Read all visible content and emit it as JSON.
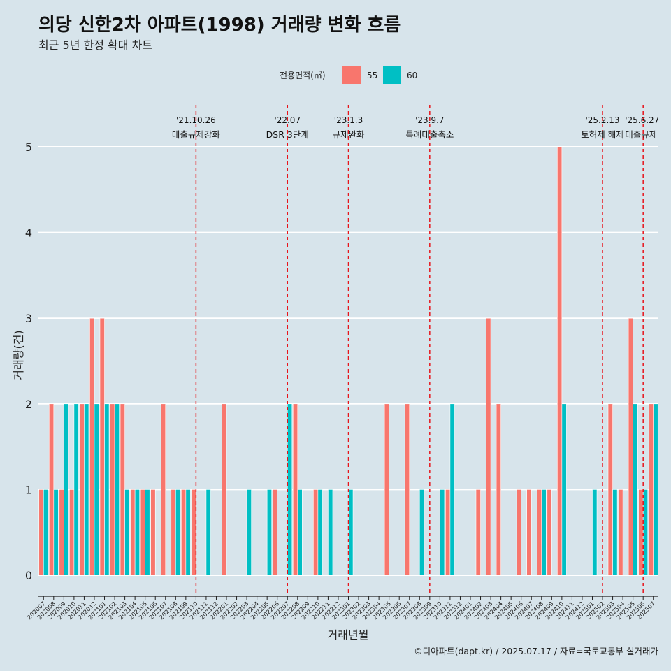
{
  "chart_data": {
    "type": "bar",
    "title": "의당 신한2차 아파트(1998) 거래량 변화 흐름",
    "subtitle": "최근 5년 한정 확대 차트",
    "xlabel": "거래년월",
    "ylabel": "거래량(건)",
    "ylim": [
      -0.25,
      5.5
    ],
    "yticks": [
      "0",
      "1",
      "2",
      "3",
      "4",
      "5"
    ],
    "grid": true,
    "legend": {
      "title": "전용면적(㎡)",
      "position": "top"
    },
    "colors": {
      "55": "#f8766d",
      "60": "#00bfc4",
      "event_line": "#e8141b",
      "background": "#d7e4eb",
      "grid": "#ffffff"
    },
    "categories": [
      "202007",
      "202008",
      "202009",
      "202010",
      "202011",
      "202012",
      "202101",
      "202102",
      "202103",
      "202104",
      "202105",
      "202106",
      "202107",
      "202108",
      "202109",
      "202110",
      "202111",
      "202112",
      "202201",
      "202202",
      "202203",
      "202204",
      "202205",
      "202206",
      "202207",
      "202208",
      "202209",
      "202210",
      "202211",
      "202212",
      "202301",
      "202302",
      "202303",
      "202304",
      "202305",
      "202306",
      "202307",
      "202308",
      "202309",
      "202310",
      "202311",
      "202312",
      "202401",
      "202402",
      "202403",
      "202404",
      "202405",
      "202406",
      "202407",
      "202408",
      "202409",
      "202410",
      "202411",
      "202412",
      "202501",
      "202502",
      "202503",
      "202504",
      "202505",
      "202506",
      "202507"
    ],
    "series": [
      {
        "name": "55",
        "values": [
          1,
          2,
          1,
          1,
          2,
          3,
          3,
          2,
          2,
          1,
          1,
          1,
          2,
          1,
          1,
          1,
          0,
          0,
          2,
          0,
          0,
          0,
          0,
          1,
          0,
          2,
          0,
          1,
          0,
          0,
          0,
          0,
          0,
          0,
          2,
          0,
          2,
          0,
          0,
          0,
          1,
          0,
          0,
          1,
          3,
          2,
          0,
          1,
          1,
          1,
          1,
          5,
          0,
          0,
          0,
          0,
          2,
          1,
          3,
          1,
          2
        ]
      },
      {
        "name": "60",
        "values": [
          1,
          1,
          2,
          2,
          2,
          2,
          2,
          2,
          1,
          1,
          1,
          0,
          0,
          1,
          1,
          0,
          1,
          0,
          0,
          0,
          1,
          0,
          1,
          0,
          2,
          1,
          0,
          1,
          1,
          0,
          1,
          0,
          0,
          0,
          0,
          0,
          0,
          1,
          0,
          1,
          2,
          0,
          0,
          0,
          0,
          0,
          0,
          0,
          0,
          1,
          0,
          2,
          0,
          0,
          1,
          0,
          1,
          0,
          2,
          1,
          2
        ]
      }
    ],
    "events": [
      {
        "x": "202110",
        "date": "'21.10.26",
        "label": "대출규제강화"
      },
      {
        "x": "202207",
        "date": "'22.07",
        "label": "DSR 3단계"
      },
      {
        "x": "202301",
        "date": "'23.1.3",
        "label": "규제완화"
      },
      {
        "x": "202309",
        "date": "'23.9.7",
        "label": "특례대출축소"
      },
      {
        "x": "202502",
        "date": "'25.2.13",
        "label": "토허제 해제"
      },
      {
        "x": "202506",
        "date": "'25.6.27",
        "label": "대출규제"
      }
    ],
    "caption": "©디아파트(dapt.kr) / 2025.07.17 / 자료=국토교통부 실거래가"
  }
}
